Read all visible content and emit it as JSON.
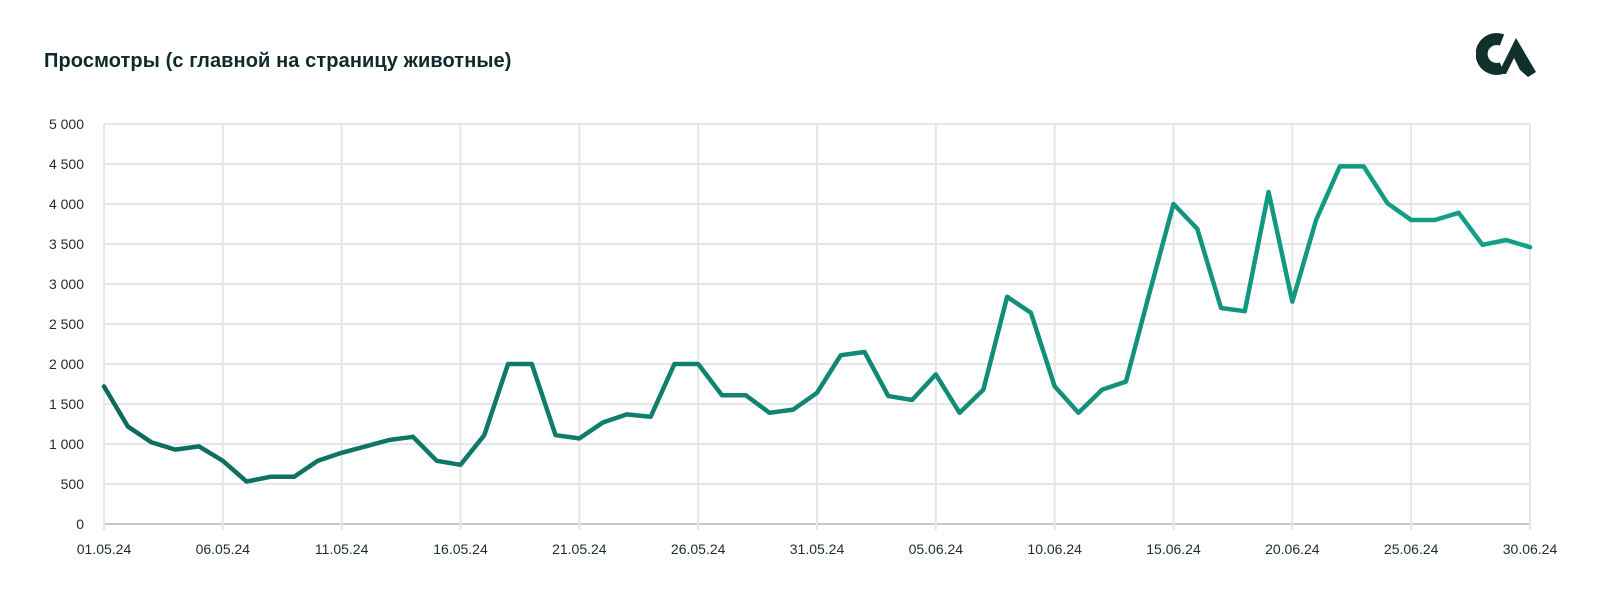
{
  "title": "Просмотры (с главной на страницу животные)",
  "logo": {
    "name": "brand-logo",
    "color": "#10302c"
  },
  "colors": {
    "line_start": "#0e6b5c",
    "line_end": "#14a189",
    "grid": "#e6e6e6",
    "axis": "#c9c9c9"
  },
  "chart_data": {
    "type": "line",
    "title": "Просмотры (с главной на страницу животные)",
    "xlabel": "",
    "ylabel": "",
    "ylim": [
      0,
      5000
    ],
    "yticks": [
      0,
      500,
      1000,
      1500,
      2000,
      2500,
      3000,
      3500,
      4000,
      4500,
      5000
    ],
    "ytick_labels": [
      "0",
      "500",
      "1 000",
      "1 500",
      "2 000",
      "2 500",
      "3 000",
      "3 500",
      "4 000",
      "4 500",
      "5 000"
    ],
    "xtick_labels": [
      "01.05.24",
      "06.05.24",
      "11.05.24",
      "16.05.24",
      "21.05.24",
      "26.05.24",
      "31.05.24",
      "05.06.24",
      "10.06.24",
      "15.06.24",
      "20.06.24",
      "25.06.24",
      "30.06.24"
    ],
    "grid": true,
    "legend": "none",
    "x": [
      "01.05.24",
      "02.05.24",
      "03.05.24",
      "04.05.24",
      "05.05.24",
      "06.05.24",
      "07.05.24",
      "08.05.24",
      "09.05.24",
      "10.05.24",
      "11.05.24",
      "12.05.24",
      "13.05.24",
      "14.05.24",
      "15.05.24",
      "16.05.24",
      "17.05.24",
      "18.05.24",
      "19.05.24",
      "20.05.24",
      "21.05.24",
      "22.05.24",
      "23.05.24",
      "24.05.24",
      "25.05.24",
      "26.05.24",
      "27.05.24",
      "28.05.24",
      "29.05.24",
      "30.05.24",
      "31.05.24",
      "01.06.24",
      "02.06.24",
      "03.06.24",
      "04.06.24",
      "05.06.24",
      "06.06.24",
      "07.06.24",
      "08.06.24",
      "09.06.24",
      "10.06.24",
      "11.06.24",
      "12.06.24",
      "13.06.24",
      "14.06.24",
      "15.06.24",
      "16.06.24",
      "17.06.24",
      "18.06.24",
      "19.06.24",
      "20.06.24",
      "21.06.24",
      "22.06.24",
      "23.06.24",
      "24.06.24",
      "25.06.24",
      "26.06.24",
      "27.06.24",
      "28.06.24",
      "29.06.24",
      "30.06.24"
    ],
    "series": [
      {
        "values": [
          1720,
          1220,
          1020,
          930,
          970,
          790,
          530,
          590,
          590,
          790,
          890,
          970,
          1050,
          1090,
          790,
          740,
          1110,
          2000,
          2000,
          1110,
          1070,
          1270,
          1370,
          1340,
          2000,
          2000,
          1610,
          1610,
          1390,
          1430,
          1640,
          2110,
          2150,
          1600,
          1550,
          1870,
          1390,
          1680,
          2840,
          2640,
          1720,
          1390,
          1680,
          1780,
          2900,
          4000,
          3690,
          2700,
          2660,
          4150,
          2780,
          3800,
          4470,
          4470,
          4010,
          3800,
          3800,
          3890,
          3490,
          3550,
          3460
        ]
      }
    ]
  }
}
